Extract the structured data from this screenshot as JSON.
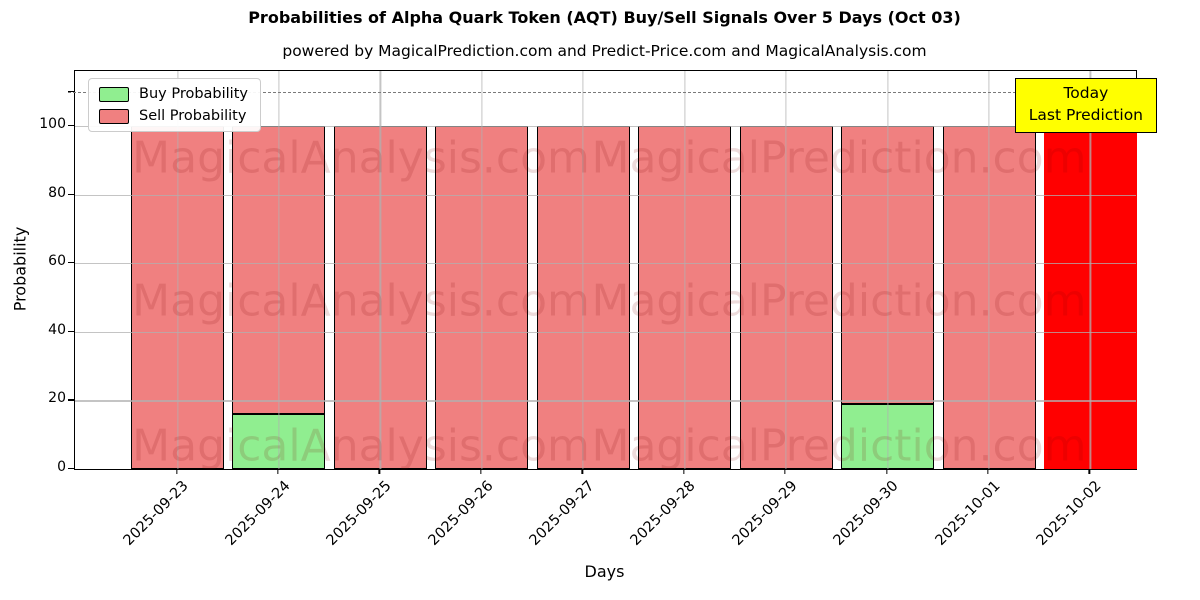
{
  "legend": {
    "items": [
      {
        "label": "Buy Probability",
        "color": "#90EE90"
      },
      {
        "label": "Sell Probability",
        "color": "#F08080"
      }
    ]
  },
  "annotation": {
    "line1": "Today",
    "line2": "Last Prediction",
    "bg": "#FFFF00"
  },
  "watermarks": {
    "left": "MagicalAnalysis.com",
    "right": "MagicalPrediction.com"
  },
  "chart_data": {
    "type": "bar",
    "stacked": true,
    "title": "Probabilities of Alpha Quark Token (AQT) Buy/Sell Signals Over 5 Days (Oct 03)",
    "subtitle": "powered by MagicalPrediction.com and Predict-Price.com and MagicalAnalysis.com",
    "xlabel": "Days",
    "ylabel": "Probability",
    "categories": [
      "2025-09-23",
      "2025-09-24",
      "2025-09-25",
      "2025-09-26",
      "2025-09-27",
      "2025-09-28",
      "2025-09-29",
      "2025-09-30",
      "2025-10-01",
      "2025-10-02"
    ],
    "series": [
      {
        "name": "Buy Probability",
        "color": "#90EE90",
        "values": [
          0,
          16,
          0,
          0,
          0,
          0,
          0,
          19,
          0,
          0
        ]
      },
      {
        "name": "Sell Probability",
        "color": "#F08080",
        "values": [
          100,
          84,
          100,
          100,
          100,
          100,
          100,
          81,
          100,
          100
        ]
      }
    ],
    "today": {
      "category": "2025-10-02",
      "sell_color": "#FF0000",
      "total": 100
    },
    "dashed_line_y": 110,
    "ylim": [
      0,
      116
    ],
    "yticks": [
      0,
      20,
      40,
      60,
      80,
      100
    ],
    "grid": true,
    "bar_edge_color": "#000000",
    "legend_position": "upper left"
  }
}
